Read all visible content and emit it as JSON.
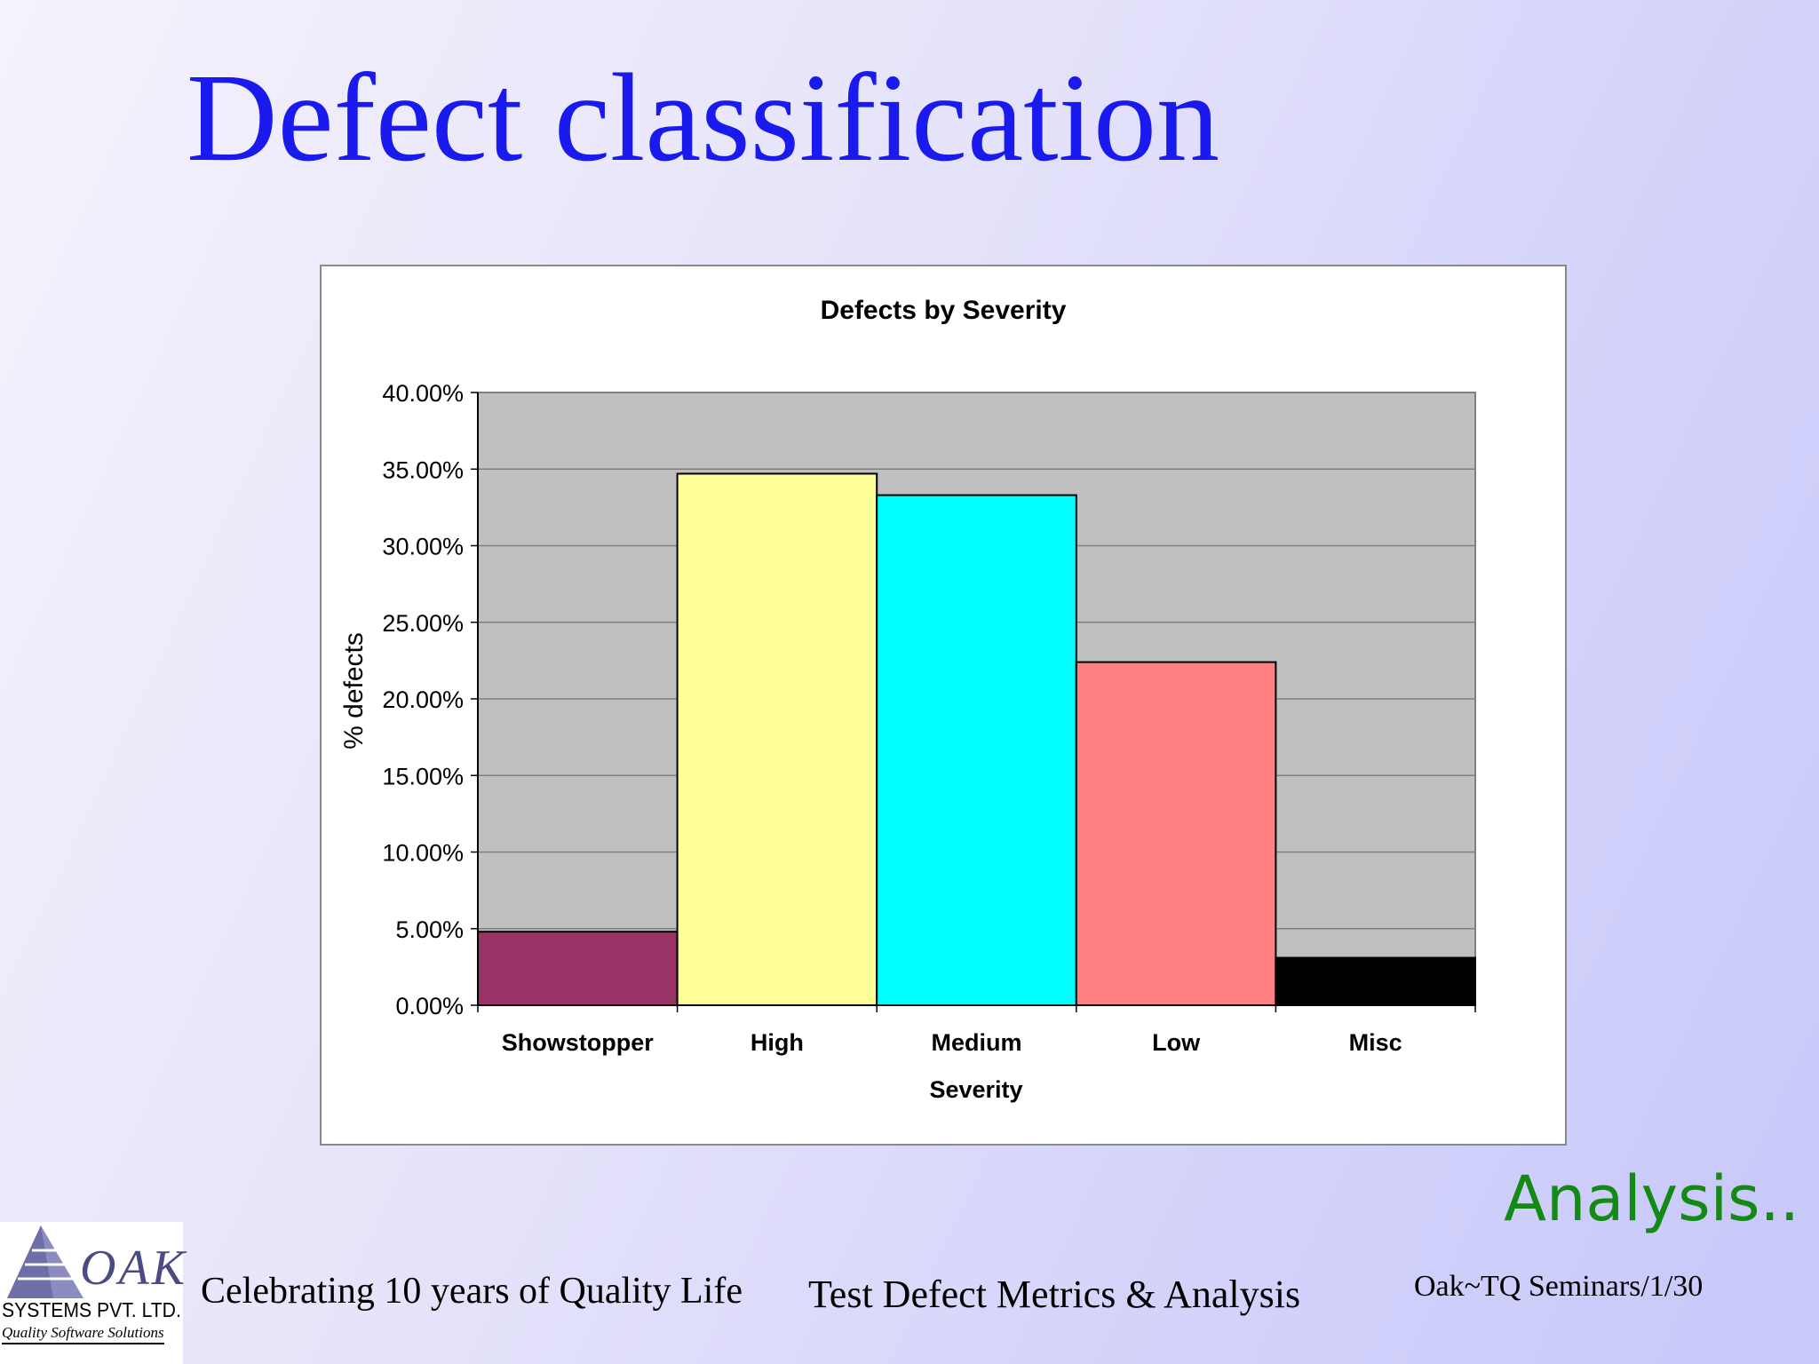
{
  "slide": {
    "title": "Defect classification",
    "analysis_label": "Analysis..",
    "footer_left": "Celebrating 10 years of Quality Life",
    "footer_center": "Test Defect Metrics & Analysis",
    "footer_right": "Oak~TQ Seminars/1/30"
  },
  "logo": {
    "name": "OAK",
    "company": "SYSTEMS PVT. LTD.",
    "tagline": "Quality Software Solutions"
  },
  "colors": {
    "title": "#1a1aef",
    "analysis": "#138a13",
    "plot_area": "#c0c0c0"
  },
  "chart_data": {
    "type": "bar",
    "title": "Defects by Severity",
    "xlabel": "Severity",
    "ylabel": "% defects",
    "categories": [
      "Showstopper",
      "High",
      "Medium",
      "Low",
      "Misc"
    ],
    "values": [
      4.8,
      34.7,
      33.3,
      22.4,
      3.1
    ],
    "colors": [
      "#993366",
      "#ffff99",
      "#00ffff",
      "#ff8080",
      "#000000"
    ],
    "ylim": [
      0,
      40
    ],
    "ytick_values": [
      0,
      5,
      10,
      15,
      20,
      25,
      30,
      35,
      40
    ],
    "ytick_labels": [
      "0.00%",
      "5.00%",
      "10.00%",
      "15.00%",
      "20.00%",
      "25.00%",
      "30.00%",
      "35.00%",
      "40.00%"
    ],
    "grid": true,
    "legend": "none"
  }
}
